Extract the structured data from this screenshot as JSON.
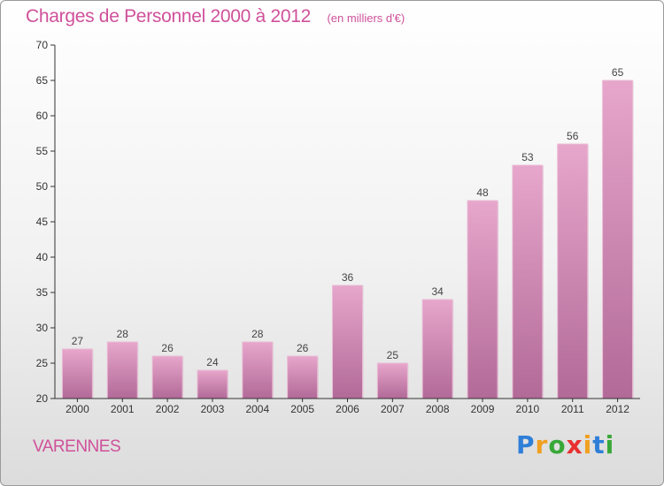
{
  "header": {
    "title": "Charges de Personnel 2000 à 2012",
    "subtitle": "(en milliers d'€)"
  },
  "commune": "VARENNES",
  "logo": {
    "letters": [
      "P",
      "r",
      "o",
      "x",
      "i",
      "t",
      "i"
    ],
    "colors": [
      "#2f7fd8",
      "#f0a020",
      "#38a838",
      "#e83030",
      "#f0a020",
      "#2f7fd8",
      "#38a838"
    ]
  },
  "colors": {
    "bar": "#d77aaa",
    "axis": "#333333",
    "title": "#d0519a"
  },
  "chart_data": {
    "type": "bar",
    "title": "Charges de Personnel 2000 à 2012",
    "subtitle": "(en milliers d'€)",
    "categories": [
      "2000",
      "2001",
      "2002",
      "2003",
      "2004",
      "2005",
      "2006",
      "2007",
      "2008",
      "2009",
      "2010",
      "2011",
      "2012"
    ],
    "values": [
      27,
      28,
      26,
      24,
      28,
      26,
      36,
      25,
      34,
      48,
      53,
      56,
      65
    ],
    "ylim": [
      20,
      70
    ],
    "yticks": [
      20,
      25,
      30,
      35,
      40,
      45,
      50,
      55,
      60,
      65,
      70
    ],
    "grid": false
  }
}
